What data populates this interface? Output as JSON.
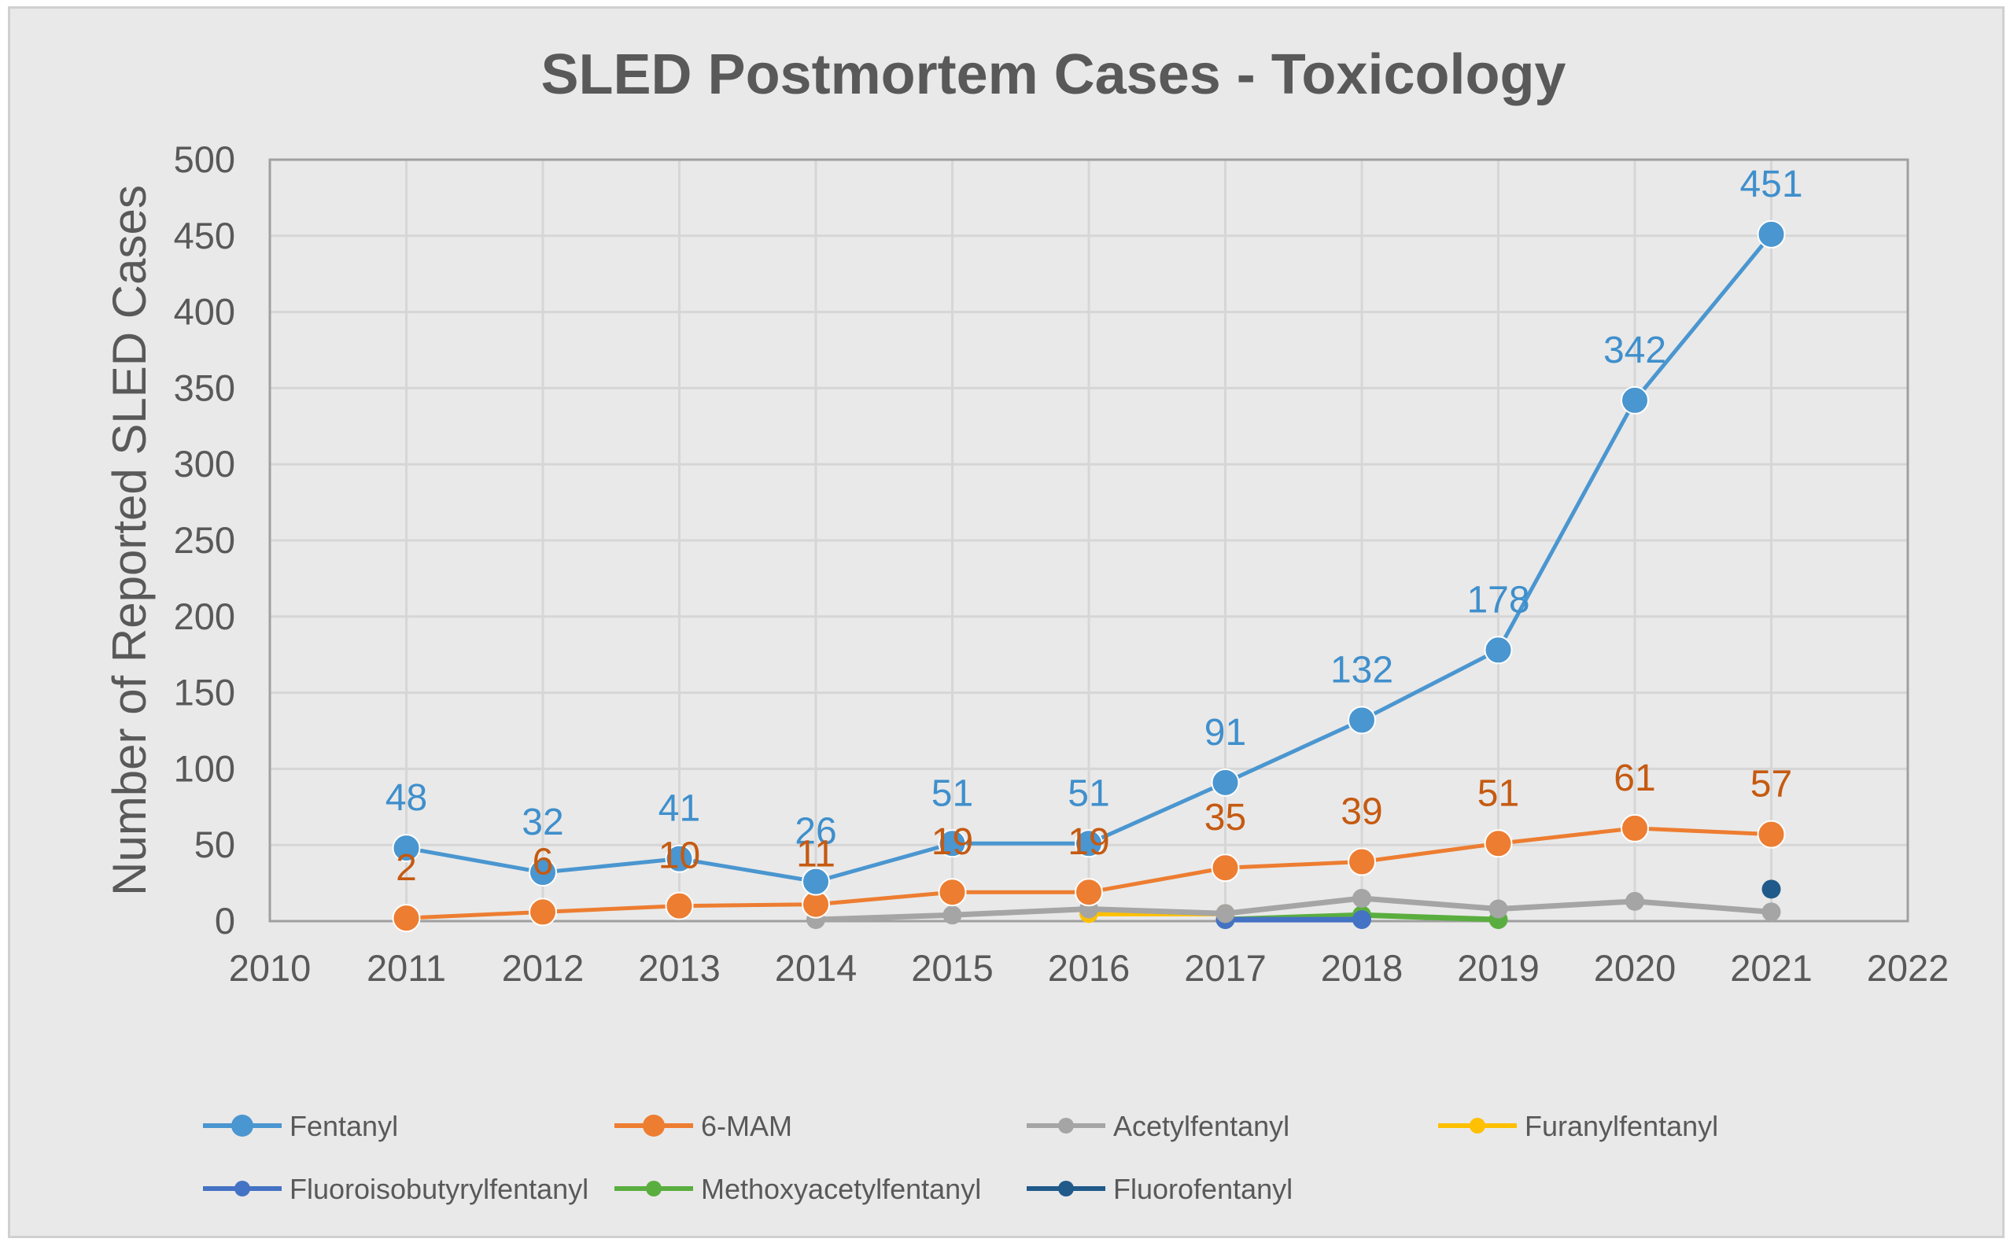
{
  "chart_data": {
    "type": "line",
    "title": "SLED Postmortem Cases - Toxicology",
    "xlabel": "",
    "ylabel": "Number of Reported SLED Cases",
    "xlim": [
      2010,
      2022
    ],
    "ylim": [
      0,
      500
    ],
    "x_ticks": [
      "2010",
      "2011",
      "2012",
      "2013",
      "2014",
      "2015",
      "2016",
      "2017",
      "2018",
      "2019",
      "2020",
      "2021",
      "2022"
    ],
    "y_ticks": [
      "0",
      "50",
      "100",
      "150",
      "200",
      "250",
      "300",
      "350",
      "400",
      "450",
      "500"
    ],
    "grid": true,
    "legend_position": "bottom",
    "series": [
      {
        "name": "Fentanyl",
        "color": "#4a96d0",
        "marker": "large",
        "label_color": "#3f8fcc",
        "x": [
          2011,
          2012,
          2013,
          2014,
          2015,
          2016,
          2017,
          2018,
          2019,
          2020,
          2021
        ],
        "values": [
          48,
          32,
          41,
          26,
          51,
          51,
          91,
          132,
          178,
          342,
          451
        ],
        "labels": [
          "48",
          "32",
          "41",
          "26",
          "51",
          "51",
          "91",
          "132",
          "178",
          "342",
          "451"
        ]
      },
      {
        "name": "6-MAM",
        "color": "#ed7d31",
        "marker": "large",
        "label_color": "#c55a11",
        "x": [
          2011,
          2012,
          2013,
          2014,
          2015,
          2016,
          2017,
          2018,
          2019,
          2020,
          2021
        ],
        "values": [
          2,
          6,
          10,
          11,
          19,
          19,
          35,
          39,
          51,
          61,
          57
        ],
        "labels": [
          "2",
          "6",
          "10",
          "11",
          "19",
          "19",
          "35",
          "39",
          "51",
          "61",
          "57"
        ]
      },
      {
        "name": "Acetylfentanyl",
        "color": "#a5a5a5",
        "marker": "small",
        "x": [
          2014,
          2015,
          2016,
          2017,
          2018,
          2019,
          2020,
          2021
        ],
        "values": [
          1,
          4,
          8,
          5,
          15,
          8,
          13,
          6
        ]
      },
      {
        "name": "Furanylfentanyl",
        "color": "#ffc000",
        "marker": "small",
        "x": [
          2016,
          2017
        ],
        "values": [
          5,
          5
        ]
      },
      {
        "name": "Fluoroisobutyrylfentanyl",
        "color": "#4472c4",
        "marker": "small",
        "x": [
          2017,
          2018
        ],
        "values": [
          1,
          1
        ]
      },
      {
        "name": "Methoxyacetylfentanyl",
        "color": "#5aae3f",
        "marker": "small",
        "x": [
          2017,
          2018,
          2019
        ],
        "values": [
          1,
          4,
          1
        ]
      },
      {
        "name": "Fluorofentanyl",
        "color": "#1f5a8a",
        "marker": "small",
        "x": [
          2021
        ],
        "values": [
          21
        ]
      }
    ]
  }
}
